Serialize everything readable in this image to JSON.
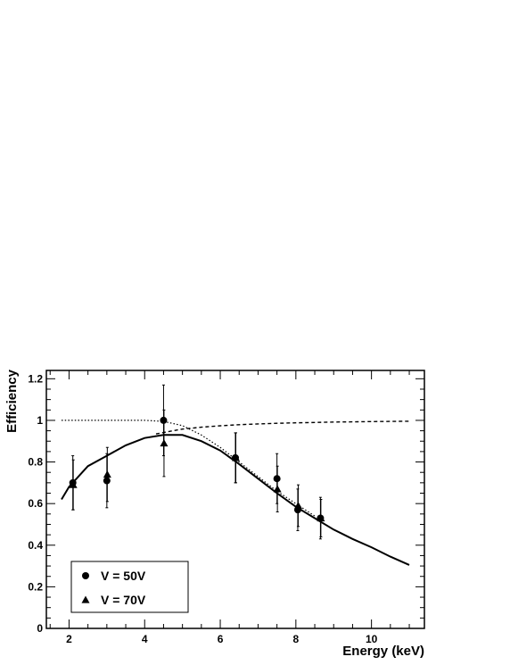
{
  "chart_data": {
    "type": "scatter",
    "title": "",
    "xlabel": "Energy (keV)",
    "ylabel": "Efficiency",
    "xlim": [
      1.4,
      11.4
    ],
    "ylim": [
      0,
      1.24
    ],
    "x_ticks": [
      2,
      4,
      6,
      8,
      10
    ],
    "y_ticks": [
      0,
      0.2,
      0.4,
      0.6,
      0.8,
      1,
      1.2
    ],
    "x_tick_labels": [
      "2",
      "4",
      "6",
      "8",
      "10"
    ],
    "y_tick_labels": [
      "0",
      "0.2",
      "0.4",
      "0.6",
      "0.8",
      "1",
      "1.2"
    ],
    "grid": false,
    "legend_position": "bottom-left",
    "series": [
      {
        "name": "V = 50V",
        "marker": "circle",
        "points": [
          {
            "x": 2.1,
            "y": 0.7,
            "err": 0.13
          },
          {
            "x": 3.0,
            "y": 0.71,
            "err": 0.13
          },
          {
            "x": 4.5,
            "y": 1.0,
            "err": 0.17
          },
          {
            "x": 6.4,
            "y": 0.82,
            "err": 0.12
          },
          {
            "x": 7.5,
            "y": 0.72,
            "err": 0.12
          },
          {
            "x": 8.05,
            "y": 0.57,
            "err": 0.1
          },
          {
            "x": 8.65,
            "y": 0.53,
            "err": 0.1
          }
        ]
      },
      {
        "name": "V = 70V",
        "marker": "triangle",
        "points": [
          {
            "x": 2.1,
            "y": 0.69,
            "err": 0.12
          },
          {
            "x": 3.0,
            "y": 0.74,
            "err": 0.13
          },
          {
            "x": 4.5,
            "y": 0.89,
            "err": 0.16
          },
          {
            "x": 6.4,
            "y": 0.82,
            "err": 0.12
          },
          {
            "x": 7.5,
            "y": 0.67,
            "err": 0.11
          },
          {
            "x": 8.05,
            "y": 0.59,
            "err": 0.1
          },
          {
            "x": 8.65,
            "y": 0.53,
            "err": 0.09
          }
        ]
      }
    ],
    "curves": [
      {
        "style": "solid",
        "x": [
          1.8,
          2.0,
          2.5,
          3.0,
          3.5,
          4.0,
          4.5,
          5.0,
          5.5,
          6.0,
          6.5,
          7.0,
          7.5,
          8.0,
          8.5,
          9.0,
          9.5,
          10.0,
          10.5,
          11.0
        ],
        "y": [
          0.62,
          0.68,
          0.78,
          0.83,
          0.88,
          0.915,
          0.93,
          0.93,
          0.9,
          0.855,
          0.79,
          0.72,
          0.65,
          0.585,
          0.53,
          0.475,
          0.43,
          0.39,
          0.345,
          0.305
        ]
      },
      {
        "style": "dotted",
        "x": [
          1.8,
          2.5,
          3.0,
          3.5,
          4.0,
          4.5,
          5.0,
          5.5,
          6.0,
          6.5,
          7.0,
          7.5,
          8.0,
          8.5
        ],
        "y": [
          1.0,
          1.0,
          1.0,
          1.0,
          1.0,
          0.995,
          0.975,
          0.93,
          0.87,
          0.8,
          0.73,
          0.66,
          0.6,
          0.54
        ]
      },
      {
        "style": "dashed",
        "x": [
          4.3,
          5.0,
          5.5,
          6.0,
          6.5,
          7.0,
          7.5,
          8.0,
          8.5,
          9.0,
          9.5,
          10.0,
          10.5,
          11.0
        ],
        "y": [
          0.935,
          0.958,
          0.967,
          0.974,
          0.979,
          0.983,
          0.986,
          0.988,
          0.99,
          0.992,
          0.993,
          0.994,
          0.995,
          0.996
        ]
      }
    ]
  }
}
